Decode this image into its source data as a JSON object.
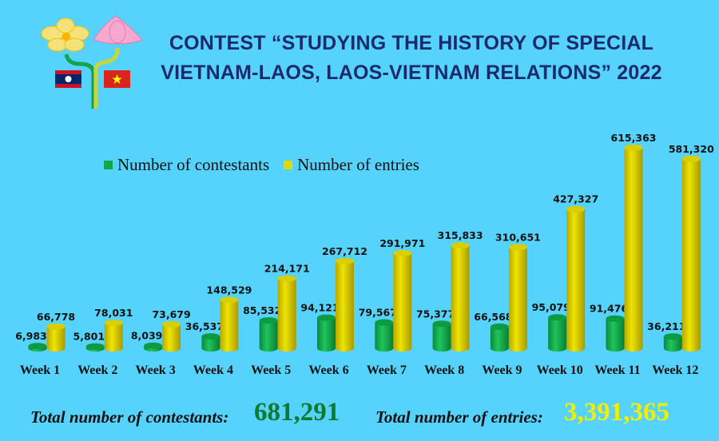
{
  "title_line1": "CONTEST “STUDYING THE HISTORY OF SPECIAL",
  "title_line2": "VIETNAM-LAOS, LAOS-VIETNAM RELATIONS” 2022",
  "colors": {
    "background": "#56d3fc",
    "contestants": "#10a84a",
    "entries": "#e0d800",
    "title": "#1b2a6b",
    "total_contestants": "#0e7a2f",
    "total_entries": "#f2f000"
  },
  "totals": {
    "contestants_label": "Total number of contestants:",
    "contestants_value": "681,291",
    "entries_label": "Total number of entries:",
    "entries_value": "3,391,365"
  },
  "chart_data": {
    "type": "bar",
    "style": "3d-cylinder",
    "legend_placement": "top-left",
    "grid": false,
    "categories": [
      "Week 1",
      "Week 2",
      "Week 3",
      "Week 4",
      "Week 5",
      "Week 6",
      "Week 7",
      "Week 8",
      "Week 9",
      "Week 10",
      "Week 11",
      "Week 12"
    ],
    "series": [
      {
        "name": "Number of contestants",
        "values": [
          6983,
          5801,
          8039,
          36537,
          85532,
          94121,
          79567,
          75377,
          66568,
          95079,
          91476,
          36211
        ],
        "labels": [
          "6,983",
          "5,801",
          "8,039",
          "36,537",
          "85,532",
          "94,121",
          "79,567",
          "75,377",
          "66,568",
          "95,079",
          "91,476",
          "36,211"
        ]
      },
      {
        "name": "Number of entries",
        "values": [
          66778,
          78031,
          73679,
          148529,
          214171,
          267712,
          291971,
          315833,
          310651,
          427327,
          615363,
          581320
        ],
        "labels": [
          "66,778",
          "78,031",
          "73,679",
          "148,529",
          "214,171",
          "267,712",
          "291,971",
          "315,833",
          "310,651",
          "427,327",
          "615,363",
          "581,320"
        ]
      }
    ],
    "ylim": [
      0,
      615363
    ]
  }
}
